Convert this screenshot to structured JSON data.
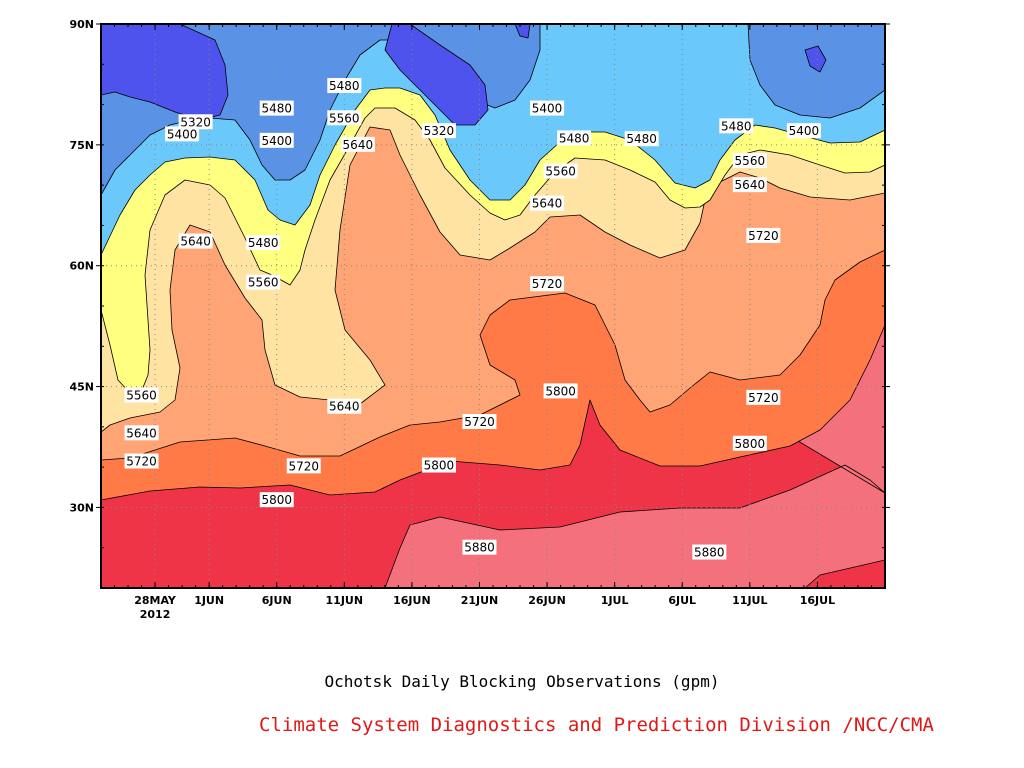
{
  "chart_data": {
    "type": "heatmap",
    "title": "Ochotsk Daily Blocking Observations (gpm)",
    "credit": "Climate System Diagnostics and Prediction Division /NCC/CMA",
    "xlabel": "",
    "ylabel": "",
    "x_ticks": [
      {
        "label": "28MAY",
        "sub": "2012",
        "date": "2012-05-28"
      },
      {
        "label": "1JUN",
        "date": "2012-06-01"
      },
      {
        "label": "6JUN",
        "date": "2012-06-06"
      },
      {
        "label": "11JUN",
        "date": "2012-06-11"
      },
      {
        "label": "16JUN",
        "date": "2012-06-16"
      },
      {
        "label": "21JUN",
        "date": "2012-06-21"
      },
      {
        "label": "26JUN",
        "date": "2012-06-26"
      },
      {
        "label": "1JUL",
        "date": "2012-07-01"
      },
      {
        "label": "6JUL",
        "date": "2012-07-06"
      },
      {
        "label": "11JUL",
        "date": "2012-07-11"
      },
      {
        "label": "16JUL",
        "date": "2012-07-16"
      }
    ],
    "xlim": [
      "2012-05-24",
      "2012-07-21"
    ],
    "y_ticks": [
      {
        "label": "30N",
        "value": 30
      },
      {
        "label": "45N",
        "value": 45
      },
      {
        "label": "60N",
        "value": 60
      },
      {
        "label": "75N",
        "value": 75
      },
      {
        "label": "90N",
        "value": 90
      }
    ],
    "ylim": [
      20,
      90
    ],
    "grid": true,
    "levels": [
      5320,
      5400,
      5480,
      5560,
      5640,
      5720,
      5800,
      5880
    ],
    "band_colors": [
      "#4d53ec",
      "#5a93e6",
      "#6ac8fb",
      "#ffff80",
      "#ffe3a3",
      "#ffa474",
      "#ff7a47",
      "#f4707c",
      "#f03447"
    ],
    "contour_labels": [
      {
        "text": "5320",
        "date": "2012-05-31",
        "lat": 77.8
      },
      {
        "text": "5400",
        "date": "2012-05-30",
        "lat": 76.3
      },
      {
        "text": "5480",
        "date": "2012-06-06",
        "lat": 79.5
      },
      {
        "text": "5400",
        "date": "2012-06-06",
        "lat": 75.5
      },
      {
        "text": "5480",
        "date": "2012-06-11",
        "lat": 82.3
      },
      {
        "text": "5560",
        "date": "2012-06-11",
        "lat": 78.3
      },
      {
        "text": "5640",
        "date": "2012-06-12",
        "lat": 75.0
      },
      {
        "text": "5320",
        "date": "2012-06-18",
        "lat": 76.7
      },
      {
        "text": "5400",
        "date": "2012-06-26",
        "lat": 79.5
      },
      {
        "text": "5480",
        "date": "2012-06-28",
        "lat": 75.8
      },
      {
        "text": "5560",
        "date": "2012-06-27",
        "lat": 71.7
      },
      {
        "text": "5480",
        "date": "2012-07-03",
        "lat": 75.7
      },
      {
        "text": "5640",
        "date": "2012-06-26",
        "lat": 67.7
      },
      {
        "text": "5480",
        "date": "2012-07-10",
        "lat": 77.3
      },
      {
        "text": "5400",
        "date": "2012-07-15",
        "lat": 76.7
      },
      {
        "text": "5560",
        "date": "2012-07-11",
        "lat": 73.0
      },
      {
        "text": "5640",
        "date": "2012-07-11",
        "lat": 70.0
      },
      {
        "text": "5720",
        "date": "2012-07-12",
        "lat": 63.7
      },
      {
        "text": "5640",
        "date": "2012-05-31",
        "lat": 63.0
      },
      {
        "text": "5480",
        "date": "2012-06-05",
        "lat": 62.8
      },
      {
        "text": "5560",
        "date": "2012-06-05",
        "lat": 57.9
      },
      {
        "text": "5720",
        "date": "2012-06-26",
        "lat": 57.7
      },
      {
        "text": "5560",
        "date": "2012-05-27",
        "lat": 43.9
      },
      {
        "text": "5640",
        "date": "2012-05-27",
        "lat": 39.2
      },
      {
        "text": "5800",
        "date": "2012-06-27",
        "lat": 44.4
      },
      {
        "text": "5720",
        "date": "2012-07-12",
        "lat": 43.6
      },
      {
        "text": "5640",
        "date": "2012-06-11",
        "lat": 42.5
      },
      {
        "text": "5720",
        "date": "2012-06-21",
        "lat": 40.6
      },
      {
        "text": "5720",
        "date": "2012-05-27",
        "lat": 35.7
      },
      {
        "text": "5720",
        "date": "2012-06-08",
        "lat": 35.1
      },
      {
        "text": "5800",
        "date": "2012-06-18",
        "lat": 35.2
      },
      {
        "text": "5800",
        "date": "2012-07-11",
        "lat": 37.9
      },
      {
        "text": "5800",
        "date": "2012-06-06",
        "lat": 30.9
      },
      {
        "text": "5880",
        "date": "2012-06-21",
        "lat": 25.0
      },
      {
        "text": "5880",
        "date": "2012-07-08",
        "lat": 24.4
      }
    ]
  }
}
